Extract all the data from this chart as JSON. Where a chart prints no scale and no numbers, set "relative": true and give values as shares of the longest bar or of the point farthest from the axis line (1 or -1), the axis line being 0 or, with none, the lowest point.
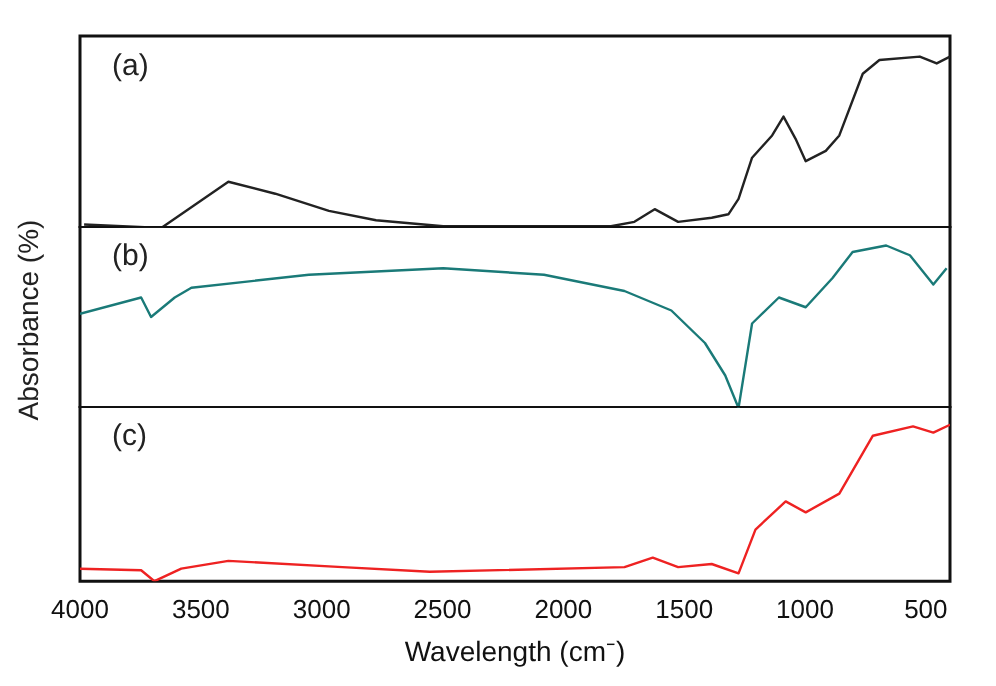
{
  "chart_data": [
    {
      "type": "line",
      "relative": true,
      "annotations": [
        "(a)"
      ],
      "xlim": [
        4000,
        400
      ],
      "tick_labels": false,
      "legend": false,
      "grid": false,
      "series": [
        {
          "color": "#222222",
          "x": [
            3983,
            3664,
            3386,
            3192,
            2970,
            2775,
            2497,
            1803,
            1706,
            1622,
            1525,
            1386,
            1317,
            1275,
            1219,
            1136,
            1089,
            1039,
            997,
            914,
            858,
            761,
            692,
            525,
            455,
            400
          ],
          "values": [
            0.02,
            0,
            0.27,
            0.2,
            0.1,
            0.045,
            0.01,
            0.01,
            0.036,
            0.11,
            0.036,
            0.06,
            0.08,
            0.17,
            0.41,
            0.54,
            0.65,
            0.52,
            0.39,
            0.45,
            0.54,
            0.9,
            0.98,
            1,
            0.96,
            1
          ]
        }
      ]
    },
    {
      "type": "line",
      "relative": true,
      "annotations": [
        "(b)"
      ],
      "ylabel": "Absorbance (%)",
      "xlim": [
        4000,
        400
      ],
      "tick_labels": false,
      "legend": false,
      "grid": false,
      "series": [
        {
          "color": "#1a7a78",
          "x": [
            4000,
            3747,
            3706,
            3608,
            3539,
            3053,
            2497,
            2080,
            1747,
            1553,
            1414,
            1330,
            1275,
            1219,
            1108,
            997,
            886,
            803,
            664,
            566,
            469,
            414
          ],
          "values": [
            0.58,
            0.68,
            0.56,
            0.68,
            0.74,
            0.82,
            0.86,
            0.82,
            0.72,
            0.6,
            0.4,
            0.2,
            0,
            0.52,
            0.68,
            0.62,
            0.8,
            0.96,
            1,
            0.94,
            0.76,
            0.86
          ]
        }
      ]
    },
    {
      "type": "line",
      "relative": true,
      "annotations": [
        "(c)"
      ],
      "xlabel": "Wavelength (cm⁻)",
      "xlim": [
        4000,
        400
      ],
      "xticks": [
        4000,
        3500,
        3000,
        2500,
        2000,
        1500,
        1000,
        500
      ],
      "tick_labels": "x",
      "legend": false,
      "grid": false,
      "series": [
        {
          "color": "#ee2222",
          "x": [
            4000,
            3747,
            3692,
            3581,
            3386,
            2914,
            2553,
            1747,
            1630,
            1525,
            1386,
            1275,
            1205,
            1080,
            997,
            858,
            719,
            553,
            469,
            400
          ],
          "values": [
            0.08,
            0.07,
            0,
            0.08,
            0.13,
            0.09,
            0.06,
            0.09,
            0.15,
            0.09,
            0.11,
            0.05,
            0.33,
            0.51,
            0.44,
            0.56,
            0.93,
            0.99,
            0.95,
            1
          ]
        }
      ]
    }
  ]
}
